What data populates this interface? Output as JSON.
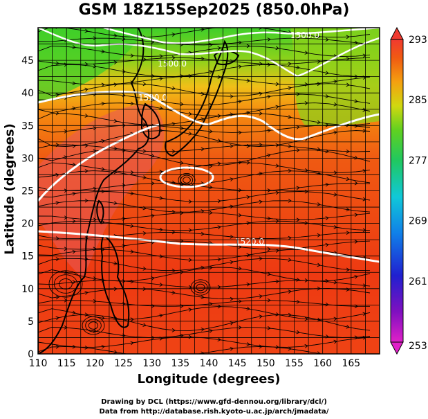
{
  "title": "GSM 18Z15Sep2025 (850.0hPa)",
  "axes": {
    "xlabel": "Longitude (degrees)",
    "ylabel": "Latitude  (degrees)",
    "xticks": [
      "110",
      "115",
      "120",
      "125",
      "130",
      "135",
      "140",
      "145",
      "150",
      "155",
      "160",
      "165"
    ],
    "yticks": [
      "0",
      "5",
      "10",
      "15",
      "20",
      "25",
      "30",
      "35",
      "40",
      "45"
    ],
    "xlim": [
      110,
      170
    ],
    "ylim": [
      0,
      50
    ]
  },
  "colorbar": {
    "labels": [
      "293",
      "285",
      "277",
      "269",
      "261",
      "253"
    ],
    "range": [
      253,
      293
    ]
  },
  "contours": [
    {
      "label": "1520.0"
    },
    {
      "label": "1520.0"
    },
    {
      "label": "1500.0"
    },
    {
      "label": "1500.0"
    }
  ],
  "credits": {
    "line1": "Drawing by DCL (https://www.gfd-dennou.org/library/dcl/)",
    "line2": "Data from http://database.rish.kyoto-u.ac.jp/arch/jmadata/"
  },
  "colors": {
    "warm_core": "#e85a5a",
    "warm": "#ee3a12",
    "mid": "#f58a10",
    "cool": "#8fd21a",
    "cold": "#3fcf2a",
    "contour": "#ffffff",
    "coast": "#000000"
  }
}
